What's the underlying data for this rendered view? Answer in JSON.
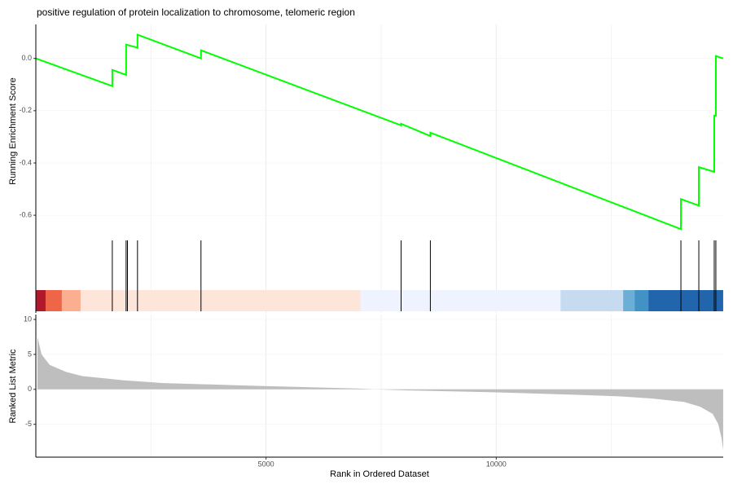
{
  "chart_data": {
    "type": "gsea",
    "title": "positive regulation of protein localization to chromosome, telomeric region",
    "xlabel": "Rank in Ordered Dataset",
    "xlim": [
      0,
      14930
    ],
    "xticks": [
      5000,
      10000
    ],
    "minor_xticks": [
      2500,
      7500,
      12500
    ],
    "es": {
      "ylabel": "Running Enrichment Score",
      "color": "#00ff00",
      "ylim": [
        -0.69,
        0.13
      ],
      "yticks": [
        {
          "value": 0,
          "label": "0.0"
        },
        -0.2,
        -0.4,
        -0.6
      ],
      "x": [
        0,
        1661,
        1661,
        1961,
        1961,
        2208,
        2208,
        3587,
        3587,
        7933,
        7933,
        8569,
        8569,
        14011,
        14011,
        14400,
        14400,
        14735,
        14735,
        14770,
        14770,
        14929
      ],
      "values": [
        0,
        -0.106,
        -0.044,
        -0.063,
        0.053,
        0.041,
        0.091,
        0,
        0.031,
        -0.256,
        -0.25,
        -0.297,
        -0.284,
        -0.653,
        -0.538,
        -0.563,
        -0.416,
        -0.434,
        -0.219,
        -0.219,
        0.009,
        0
      ]
    },
    "hits": [
      1661,
      1961,
      1990,
      2208,
      3587,
      7933,
      8569,
      14011,
      14400,
      14735,
      14770
    ],
    "color_bar": [
      {
        "start": 0,
        "end": 212,
        "color": "#b2182b"
      },
      {
        "start": 212,
        "end": 565,
        "color": "#ef6548"
      },
      {
        "start": 565,
        "end": 972,
        "color": "#fcae91"
      },
      {
        "start": 972,
        "end": 7049,
        "color": "#fee5d9"
      },
      {
        "start": 7049,
        "end": 11396,
        "color": "#eff3ff"
      },
      {
        "start": 11396,
        "end": 12756,
        "color": "#c6dbef"
      },
      {
        "start": 12756,
        "end": 13004,
        "color": "#6baed6"
      },
      {
        "start": 13004,
        "end": 13304,
        "color": "#4292c6"
      },
      {
        "start": 13304,
        "end": 14929,
        "color": "#2166ac"
      }
    ],
    "metric": {
      "ylabel": "Ranked List Metric",
      "color": "#bebebe",
      "ylim": [
        -9.7,
        10.7
      ],
      "yticks": [
        10,
        5,
        0,
        -5
      ],
      "x": [
        35,
        124,
        300,
        654,
        1007,
        1890,
        2774,
        4541,
        7049,
        7367,
        8074,
        9841,
        11608,
        12668,
        13375,
        14081,
        14435,
        14700,
        14823,
        14894,
        14929
      ],
      "values": [
        7.5,
        5,
        3.5,
        2.5,
        1.9,
        1.3,
        0.9,
        0.55,
        0.1,
        0,
        -0.15,
        -0.4,
        -0.75,
        -1.0,
        -1.3,
        -1.8,
        -2.5,
        -3.5,
        -5,
        -7,
        -8.7
      ]
    }
  }
}
